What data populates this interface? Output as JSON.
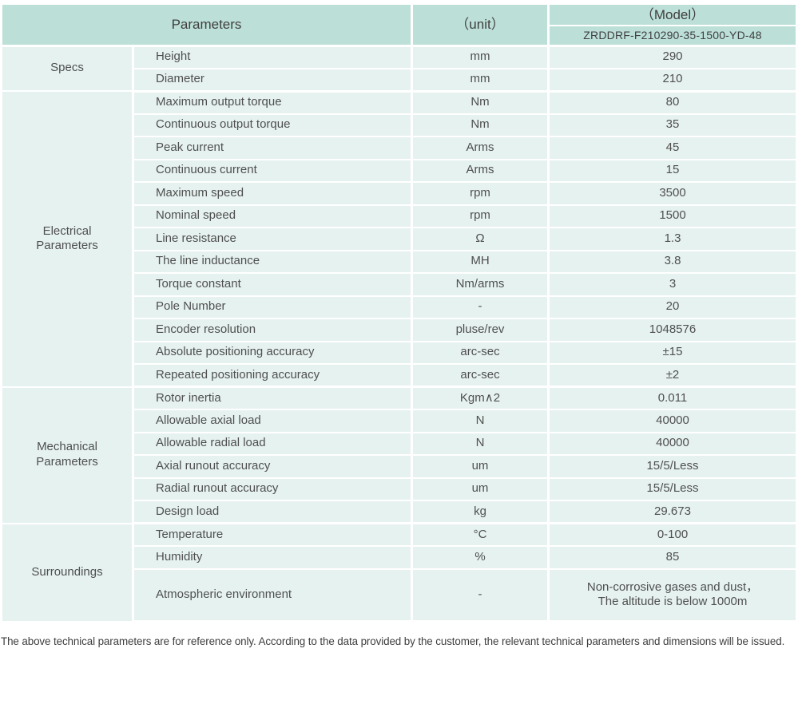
{
  "table": {
    "header": {
      "parameters_label": "Parameters",
      "unit_label": "（unit）",
      "model_label": "（Model）",
      "model_value": "ZRDDRF-F210290-35-1500-YD-48"
    },
    "sections": [
      {
        "group": "Specs",
        "rows": [
          {
            "name": "Height",
            "unit": "mm",
            "value": "290"
          },
          {
            "name": "Diameter",
            "unit": "mm",
            "value": "210"
          }
        ]
      },
      {
        "group": "Electrical\nParameters",
        "rows": [
          {
            "name": "Maximum output torque",
            "unit": "Nm",
            "value": "80"
          },
          {
            "name": "Continuous output torque",
            "unit": "Nm",
            "value": "35"
          },
          {
            "name": "Peak current",
            "unit": "Arms",
            "value": "45"
          },
          {
            "name": "Continuous current",
            "unit": "Arms",
            "value": "15"
          },
          {
            "name": "Maximum speed",
            "unit": "rpm",
            "value": "3500"
          },
          {
            "name": "Nominal speed",
            "unit": "rpm",
            "value": "1500"
          },
          {
            "name": "Line resistance",
            "unit": "Ω",
            "value": "1.3"
          },
          {
            "name": "The line inductance",
            "unit": "MH",
            "value": "3.8"
          },
          {
            "name": "Torque constant",
            "unit": "Nm/arms",
            "value": "3"
          },
          {
            "name": "Pole Number",
            "unit": "-",
            "value": "20"
          },
          {
            "name": "Encoder resolution",
            "unit": "pluse/rev",
            "value": "1048576"
          },
          {
            "name": "Absolute positioning accuracy",
            "unit": "arc-sec",
            "value": "±15"
          },
          {
            "name": "Repeated positioning accuracy",
            "unit": "arc-sec",
            "value": "±2"
          }
        ]
      },
      {
        "group": "Mechanical\nParameters",
        "rows": [
          {
            "name": "Rotor inertia",
            "unit": "Kgm∧2",
            "value": "0.011"
          },
          {
            "name": "Allowable axial load",
            "unit": "N",
            "value": "40000"
          },
          {
            "name": "Allowable radial load",
            "unit": "N",
            "value": "40000"
          },
          {
            "name": "Axial runout accuracy",
            "unit": "um",
            "value": "15/5/Less"
          },
          {
            "name": "Radial runout accuracy",
            "unit": "um",
            "value": "15/5/Less"
          },
          {
            "name": "Design load",
            "unit": "kg",
            "value": "29.673"
          }
        ]
      },
      {
        "group": "Surroundings",
        "rows": [
          {
            "name": "Temperature",
            "unit": "°C",
            "value": "0-100"
          },
          {
            "name": "Humidity",
            "unit": "%",
            "value": "85"
          },
          {
            "name": "Atmospheric environment",
            "unit": "-",
            "value": "Non-corrosive gases and dust，\nThe altitude is below 1000m",
            "tall": true
          }
        ]
      }
    ]
  },
  "footer": {
    "note": "The above technical parameters are for reference only. According to the data provided by the customer, the relevant technical parameters and dimensions will be issued."
  },
  "colors": {
    "header_bg": "#bcdfd7",
    "row_bg": "#e6f2f0",
    "text": "#4f4f4f",
    "header_text": "#404040"
  }
}
